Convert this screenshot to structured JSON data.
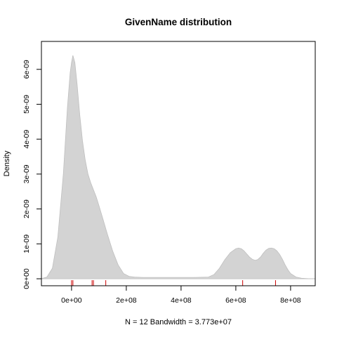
{
  "chart_data": {
    "type": "area",
    "title": "GivenName distribution",
    "xlabel": "N = 12   Bandwidth = 3.773e+07",
    "ylabel": "Density",
    "xlim": [
      -110000000,
      890000000
    ],
    "ylim": [
      -2e-10,
      6.8e-09
    ],
    "grid": false,
    "legend": "none",
    "x_ticks": [
      {
        "value": 0,
        "label": "0e+00"
      },
      {
        "value": 200000000,
        "label": "2e+08"
      },
      {
        "value": 400000000,
        "label": "4e+08"
      },
      {
        "value": 600000000,
        "label": "6e+08"
      },
      {
        "value": 800000000,
        "label": "8e+08"
      }
    ],
    "y_ticks": [
      {
        "value": 0,
        "label": "0e+00"
      },
      {
        "value": 1e-09,
        "label": "1e-09"
      },
      {
        "value": 2e-09,
        "label": "2e-09"
      },
      {
        "value": 3e-09,
        "label": "3e-09"
      },
      {
        "value": 4e-09,
        "label": "4e-09"
      },
      {
        "value": 5e-09,
        "label": "5e-09"
      },
      {
        "value": 6e-09,
        "label": "6e-09"
      }
    ],
    "series": [
      {
        "x": [
          -113000000,
          -90000000,
          -70000000,
          -50000000,
          -30000000,
          -15000000,
          -5000000,
          0,
          5000000,
          12000000,
          20000000,
          30000000,
          40000000,
          50000000,
          60000000,
          70000000,
          80000000,
          90000000,
          100000000,
          115000000,
          130000000,
          150000000,
          170000000,
          190000000,
          210000000,
          230000000,
          260000000,
          300000000,
          350000000,
          400000000,
          450000000,
          500000000,
          520000000,
          540000000,
          560000000,
          580000000,
          600000000,
          610000000,
          620000000,
          630000000,
          640000000,
          650000000,
          660000000,
          670000000,
          680000000,
          690000000,
          700000000,
          710000000,
          720000000,
          730000000,
          740000000,
          750000000,
          760000000,
          770000000,
          780000000,
          790000000,
          800000000,
          820000000,
          840000000,
          860000000,
          876000000
        ],
        "y": [
          0.0,
          5e-11,
          3e-10,
          1.2e-09,
          3e-09,
          4.9e-09,
          5.9e-09,
          6.2e-09,
          6.4e-09,
          6.2e-09,
          5.6e-09,
          4.7e-09,
          3.95e-09,
          3.4e-09,
          3e-09,
          2.75e-09,
          2.55e-09,
          2.35e-09,
          2.1e-09,
          1.7e-09,
          1.3e-09,
          8e-10,
          4e-10,
          1.5e-10,
          7e-11,
          5e-11,
          4e-11,
          4e-11,
          4e-11,
          4e-11,
          4e-11,
          5e-11,
          1.2e-10,
          3e-10,
          5.5e-10,
          7.5e-10,
          8.6e-10,
          8.8e-10,
          8.6e-10,
          8e-10,
          7.1e-10,
          6.2e-10,
          5.6e-10,
          5.3e-10,
          5.5e-10,
          6.2e-10,
          7.3e-10,
          8.2e-10,
          8.7e-10,
          8.8e-10,
          8.6e-10,
          8e-10,
          7e-10,
          5.6e-10,
          4e-10,
          2.6e-10,
          1.5e-10,
          5e-11,
          1.5e-11,
          5e-12,
          0.0
        ]
      }
    ],
    "rug": [
      0,
      5000000,
      75000000,
      80000000,
      125000000,
      625000000,
      745000000
    ],
    "colors": {
      "fill": "#d3d3d3",
      "outline": "#bfbfbf",
      "rug": "#cc0000",
      "baseline": "#bebebe",
      "axes": "#000000"
    }
  }
}
